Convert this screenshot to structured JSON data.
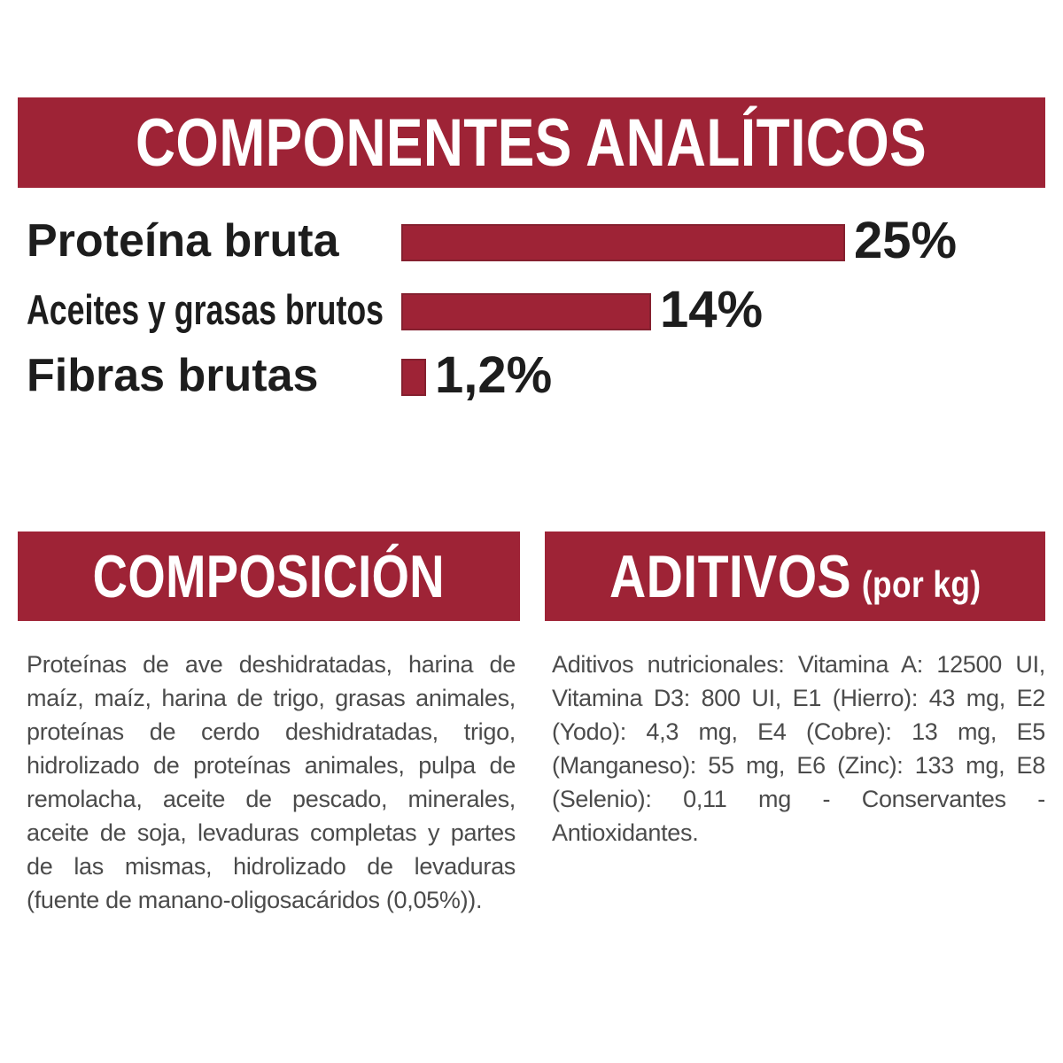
{
  "header": {
    "title": "COMPONENTES ANALÍTICOS"
  },
  "chart_data": {
    "type": "bar",
    "orientation": "horizontal",
    "title": "COMPONENTES ANALÍTICOS",
    "categories": [
      "Proteína bruta",
      "Aceites y grasas brutos",
      "Fibras brutas"
    ],
    "values": [
      25,
      14,
      1.2
    ],
    "value_labels": [
      "25%",
      "14%",
      "1,2%"
    ],
    "unit": "%",
    "xlim": [
      0,
      25
    ],
    "grid": false,
    "legend": false,
    "bar_color": "#9e2336"
  },
  "sections": {
    "composicion": {
      "title": "COMPOSICIÓN",
      "body": "Proteínas de ave deshidratadas, harina de maíz, maíz, harina de trigo, grasas animales, proteínas de cerdo deshidratadas, trigo, hidrolizado de proteínas animales, pulpa de remolacha, aceite de pescado, minerales, aceite de soja, levaduras completas y partes de las mismas, hidrolizado de levaduras (fuente de manano-oligosacáridos (0,05%))."
    },
    "aditivos": {
      "title": "ADITIVOS",
      "title_suffix": "(por kg)",
      "body": "Aditivos nutricionales: Vitamina A: 12500 UI, Vitamina D3: 800 UI, E1 (Hierro): 43 mg, E2 (Yodo): 4,3 mg, E4 (Cobre): 13 mg, E5 (Manganeso): 55 mg, E6 (Zinc): 133 mg, E8 (Selenio): 0,11 mg - Conservantes - Antioxidantes."
    }
  },
  "colors": {
    "accent_red": "#9e2336",
    "bar_border": "#85202f",
    "label_black": "#1d1d1d",
    "body_gray": "#4b4b4b"
  }
}
